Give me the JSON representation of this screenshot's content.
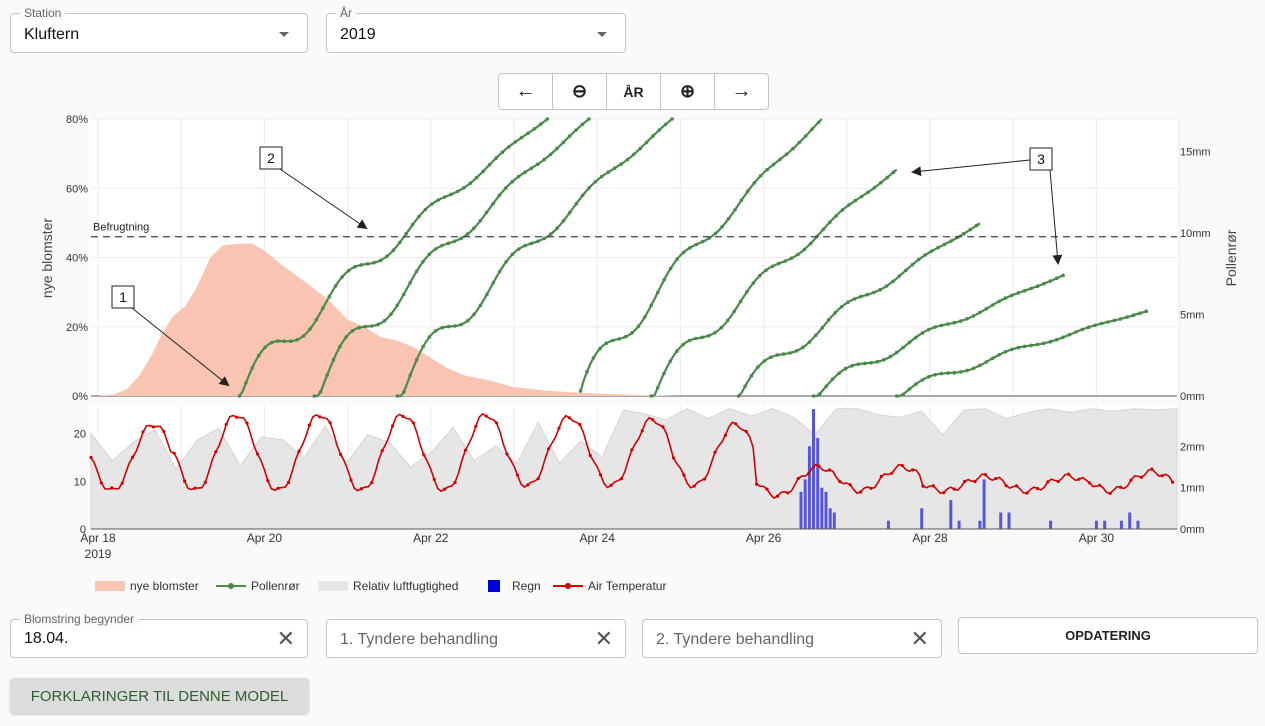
{
  "controls": {
    "station": {
      "label": "Station",
      "value": "Kluftern"
    },
    "year": {
      "label": "År",
      "value": "2019"
    },
    "nav": {
      "back": "←",
      "zoom_out": "⊖",
      "year": "ÅR",
      "zoom_in": "⊕",
      "forward": "→"
    },
    "bloom_start": {
      "label": "Blomstring begynder",
      "value": "18.04."
    },
    "thinning1": {
      "placeholder": "1. Tyndere behandling"
    },
    "thinning2": {
      "placeholder": "2. Tyndere behandling"
    },
    "clear_icon": "✕",
    "update_label": "OPDATERING",
    "explain_label": "FORKLARINGER TIL DENNE MODEL"
  },
  "colors": {
    "blossom": "#f9c4b1",
    "pollen": "#4a8a4a",
    "humidity": "#e6e6e6",
    "rain": "#5555e0",
    "temp": "#d40000"
  },
  "chart_data": [
    {
      "type": "line",
      "ylabel": "nye blomster",
      "y2label": "Pollenrør",
      "ylim": [
        0,
        80
      ],
      "y2lim": [
        0,
        17
      ],
      "yticks": [
        "0%",
        "20%",
        "40%",
        "60%",
        "80%"
      ],
      "y2ticks": [
        "0mm",
        "5mm",
        "10mm",
        "15mm"
      ],
      "threshold": {
        "label": "Befrugtning",
        "value_pct": 46
      },
      "blossom": {
        "name": "nye blomster",
        "x": [
          0,
          0.2,
          0.35,
          0.5,
          0.65,
          0.75,
          0.9,
          1.05,
          1.2,
          1.35,
          1.5,
          1.7,
          1.85,
          2.0,
          2.2,
          2.4,
          2.6,
          2.8,
          3.0,
          3.2,
          3.4,
          3.6,
          3.8,
          4.0,
          4.2,
          4.4,
          4.7,
          5.0,
          5.4,
          6.0,
          6.6,
          7.0
        ],
        "values": [
          0,
          0.5,
          2,
          6,
          12,
          17,
          23,
          26,
          32,
          40,
          43.5,
          44,
          44,
          42,
          38,
          34.5,
          31,
          27,
          22,
          20,
          17,
          16,
          14,
          11,
          8,
          6,
          4.5,
          2.5,
          1.5,
          0.7,
          0.2,
          0
        ]
      },
      "pollen_tubes": {
        "name": "Pollenrør",
        "note_x": "day offset from Apr 18, values in mm",
        "tubes": [
          {
            "start": 1.7,
            "end": 5.4,
            "values_end": 17
          },
          {
            "start": 2.6,
            "end": 5.9,
            "values_end": 17
          },
          {
            "start": 3.6,
            "end": 6.9,
            "values_end": 17
          },
          {
            "start": 5.8,
            "end": 8.7,
            "values_end": 17
          },
          {
            "start": 6.65,
            "end": 9.6,
            "values_end": 13.9
          },
          {
            "start": 7.7,
            "end": 10.6,
            "values_end": 10.6
          },
          {
            "start": 8.6,
            "end": 11.6,
            "values_end": 7.4
          },
          {
            "start": 9.6,
            "end": 12.6,
            "values_end": 5.2
          }
        ]
      },
      "annotations": [
        {
          "label": "1",
          "x_day": 1.05,
          "y_pct": 4
        },
        {
          "label": "2",
          "x_day": 3.3,
          "y_pct": 51
        },
        {
          "label": "3a",
          "text": "3",
          "x_day": 9.8,
          "y_pct": 65
        },
        {
          "label": "3b",
          "text": "3",
          "x_day": 11.6,
          "y_pct": 38
        }
      ]
    },
    {
      "type": "line",
      "ylim": [
        0,
        26
      ],
      "y2lim": [
        0,
        3
      ],
      "yticks": [
        "0",
        "10",
        "20"
      ],
      "y2ticks": [
        "0mm",
        "1mm",
        "2mm"
      ],
      "xticks": [
        "Apr 18",
        "Apr 20",
        "Apr 22",
        "Apr 24",
        "Apr 26",
        "Apr 28",
        "Apr 30"
      ],
      "xtick_year": "2019",
      "temperature": {
        "name": "Air Temperatur",
        "daily": [
          {
            "min": 8,
            "max": 22
          },
          {
            "min": 8,
            "max": 24
          },
          {
            "min": 8,
            "max": 24
          },
          {
            "min": 8,
            "max": 24
          },
          {
            "min": 8,
            "max": 24
          },
          {
            "min": 9,
            "max": 23.5
          },
          {
            "min": 9,
            "max": 23
          },
          {
            "min": 9,
            "max": 22
          },
          {
            "min": 7,
            "max": 13
          },
          {
            "min": 8,
            "max": 13
          },
          {
            "min": 8,
            "max": 11
          },
          {
            "min": 8,
            "max": 11
          },
          {
            "min": 8,
            "max": 12
          }
        ]
      },
      "humidity": {
        "name": "Relativ luftfugtighed",
        "values_pct": [
          77,
          55,
          70,
          80,
          48,
          72,
          81,
          51,
          74,
          72,
          57,
          83,
          53,
          76,
          70,
          50,
          62,
          82,
          55,
          67,
          53,
          86,
          53,
          71,
          58,
          96,
          93,
          88,
          97,
          89,
          97,
          91,
          97,
          90,
          76,
          97,
          97,
          92,
          90,
          95,
          76,
          96,
          97,
          89,
          94,
          97,
          94,
          97,
          95,
          97,
          96,
          97
        ]
      },
      "rain": {
        "name": "Regn",
        "bars": [
          {
            "x": 8.45,
            "mm": 0.9
          },
          {
            "x": 8.5,
            "mm": 1.2
          },
          {
            "x": 8.55,
            "mm": 2.0
          },
          {
            "x": 8.6,
            "mm": 2.9
          },
          {
            "x": 8.65,
            "mm": 2.2
          },
          {
            "x": 8.7,
            "mm": 1.0
          },
          {
            "x": 8.75,
            "mm": 0.9
          },
          {
            "x": 8.8,
            "mm": 0.5
          },
          {
            "x": 8.85,
            "mm": 0.4
          },
          {
            "x": 9.5,
            "mm": 0.2
          },
          {
            "x": 9.9,
            "mm": 0.5
          },
          {
            "x": 10.25,
            "mm": 0.7
          },
          {
            "x": 10.35,
            "mm": 0.2
          },
          {
            "x": 10.6,
            "mm": 0.2
          },
          {
            "x": 10.65,
            "mm": 1.2
          },
          {
            "x": 10.85,
            "mm": 0.4
          },
          {
            "x": 10.95,
            "mm": 0.4
          },
          {
            "x": 11.45,
            "mm": 0.2
          },
          {
            "x": 12.0,
            "mm": 0.2
          },
          {
            "x": 12.1,
            "mm": 0.2
          },
          {
            "x": 12.3,
            "mm": 0.2
          },
          {
            "x": 12.4,
            "mm": 0.4
          },
          {
            "x": 12.5,
            "mm": 0.2
          }
        ]
      }
    }
  ],
  "legend": [
    {
      "label": "nye blomster",
      "kind": "area",
      "color": "#f9c4b1"
    },
    {
      "label": "Pollenrør",
      "kind": "line-dot",
      "color": "#4a8a4a"
    },
    {
      "label": "Relativ luftfugtighed",
      "kind": "area",
      "color": "#e6e6e6"
    },
    {
      "label": "Regn",
      "kind": "square",
      "color": "#0000dd"
    },
    {
      "label": "Air Temperatur",
      "kind": "line-dot",
      "color": "#d40000"
    }
  ]
}
